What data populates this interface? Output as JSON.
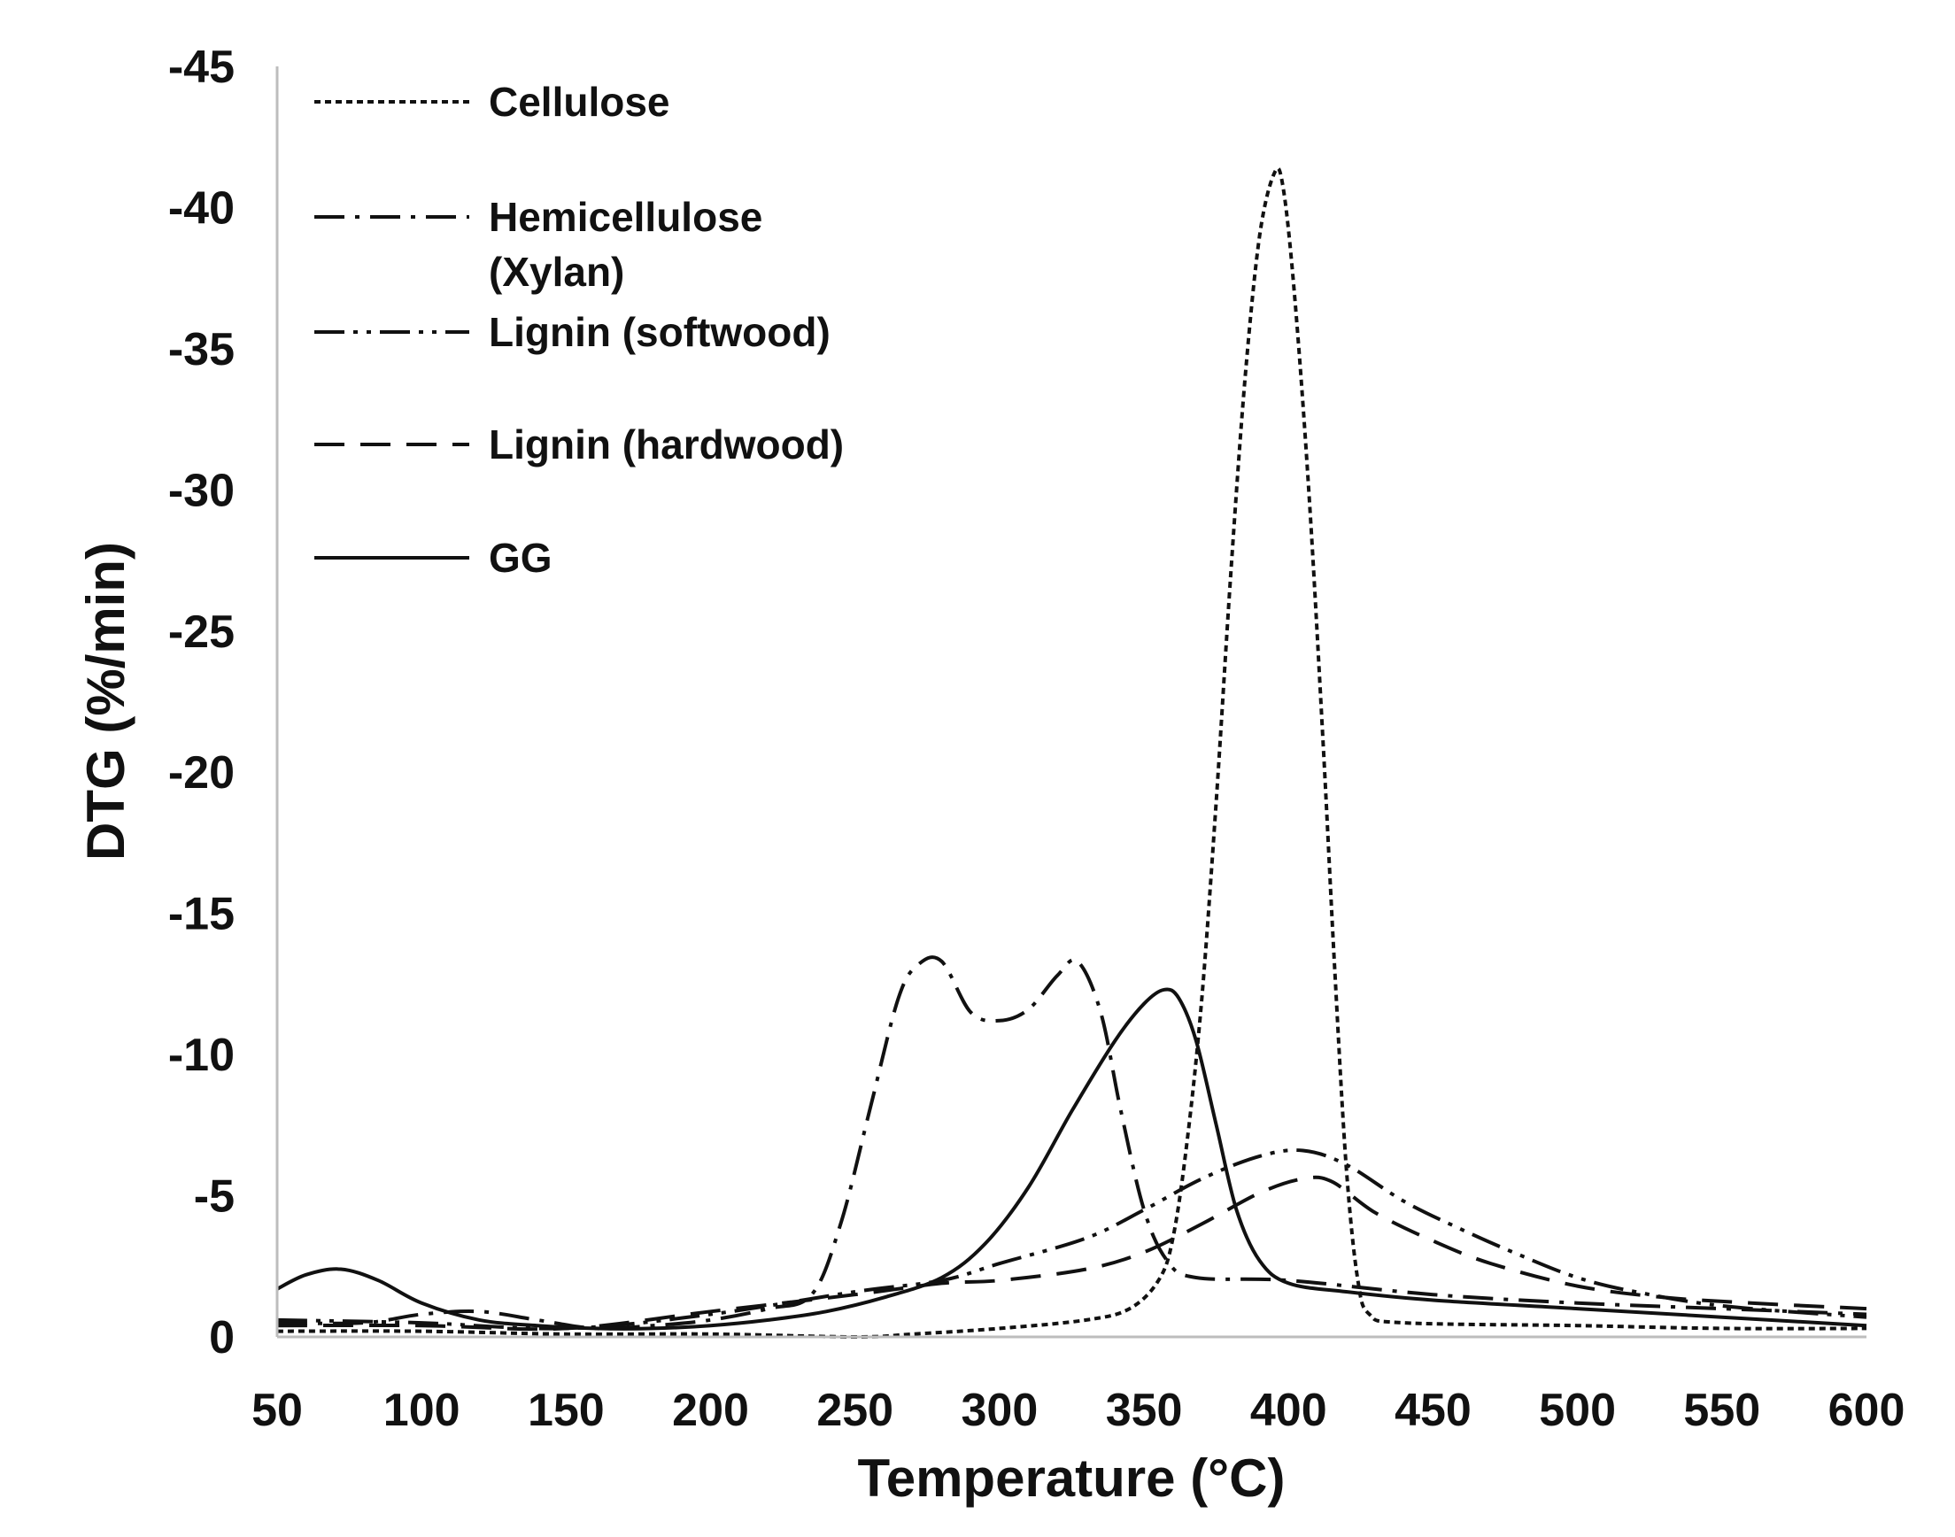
{
  "chart_data": {
    "type": "line",
    "title": "",
    "xlabel": "Temperature (°C)",
    "ylabel": "DTG (%/min)",
    "xlim": [
      50,
      600
    ],
    "ylim": [
      0,
      -45
    ],
    "x_ticks": [
      50,
      100,
      150,
      200,
      250,
      300,
      350,
      400,
      450,
      500,
      550,
      600
    ],
    "y_ticks": [
      0,
      -5,
      -10,
      -15,
      -20,
      -25,
      -30,
      -35,
      -40,
      -45
    ],
    "x_tick_labels": [
      "50",
      "100",
      "150",
      "200",
      "250",
      "300",
      "350",
      "400",
      "450",
      "500",
      "550",
      "600"
    ],
    "y_tick_labels": [
      "0",
      "-5",
      "-10",
      "-15",
      "-20",
      "-25",
      "-30",
      "-35",
      "-40",
      "-45"
    ],
    "grid": false,
    "legend_position": "top-left",
    "series": [
      {
        "name": "Cellulose",
        "legend_lines": [
          "Cellulose"
        ],
        "style": "short-dash",
        "points": [
          [
            50,
            -0.2
          ],
          [
            100,
            -0.2
          ],
          [
            150,
            -0.1
          ],
          [
            200,
            -0.1
          ],
          [
            250,
            0
          ],
          [
            270,
            -0.1
          ],
          [
            300,
            -0.3
          ],
          [
            330,
            -0.6
          ],
          [
            345,
            -1.0
          ],
          [
            355,
            -2.0
          ],
          [
            360,
            -3.5
          ],
          [
            365,
            -7
          ],
          [
            370,
            -12
          ],
          [
            375,
            -19
          ],
          [
            380,
            -27
          ],
          [
            385,
            -34
          ],
          [
            390,
            -39
          ],
          [
            395,
            -41.2
          ],
          [
            398,
            -40.8
          ],
          [
            402,
            -37
          ],
          [
            407,
            -30
          ],
          [
            412,
            -21
          ],
          [
            416,
            -13
          ],
          [
            420,
            -6
          ],
          [
            424,
            -2
          ],
          [
            428,
            -0.8
          ],
          [
            440,
            -0.5
          ],
          [
            500,
            -0.4
          ],
          [
            550,
            -0.3
          ],
          [
            600,
            -0.3
          ]
        ]
      },
      {
        "name": "Hemicellulose (Xylan)",
        "legend_lines": [
          "Hemicellulose",
          "(Xylan)"
        ],
        "style": "dash-dot",
        "points": [
          [
            50,
            -0.5
          ],
          [
            80,
            -0.5
          ],
          [
            100,
            -0.8
          ],
          [
            120,
            -0.9
          ],
          [
            140,
            -0.6
          ],
          [
            160,
            -0.3
          ],
          [
            180,
            -0.4
          ],
          [
            200,
            -0.6
          ],
          [
            220,
            -1.0
          ],
          [
            235,
            -1.5
          ],
          [
            245,
            -4
          ],
          [
            255,
            -8
          ],
          [
            265,
            -12
          ],
          [
            272,
            -13.2
          ],
          [
            280,
            -13.3
          ],
          [
            290,
            -11.5
          ],
          [
            300,
            -11.2
          ],
          [
            310,
            -11.6
          ],
          [
            320,
            -12.8
          ],
          [
            327,
            -13.3
          ],
          [
            335,
            -11.5
          ],
          [
            342,
            -8
          ],
          [
            350,
            -4.5
          ],
          [
            358,
            -2.7
          ],
          [
            368,
            -2.1
          ],
          [
            400,
            -2.0
          ],
          [
            450,
            -1.5
          ],
          [
            500,
            -1.2
          ],
          [
            550,
            -1.0
          ],
          [
            600,
            -0.8
          ]
        ]
      },
      {
        "name": "Lignin (softwood)",
        "legend_lines": [
          "Lignin (softwood)"
        ],
        "style": "dash-dot-dot",
        "points": [
          [
            50,
            -0.6
          ],
          [
            100,
            -0.5
          ],
          [
            150,
            -0.3
          ],
          [
            200,
            -0.8
          ],
          [
            250,
            -1.6
          ],
          [
            280,
            -2.0
          ],
          [
            300,
            -2.6
          ],
          [
            330,
            -3.5
          ],
          [
            350,
            -4.5
          ],
          [
            370,
            -5.6
          ],
          [
            390,
            -6.4
          ],
          [
            405,
            -6.6
          ],
          [
            420,
            -6.1
          ],
          [
            440,
            -4.8
          ],
          [
            460,
            -3.8
          ],
          [
            480,
            -2.9
          ],
          [
            500,
            -2.1
          ],
          [
            520,
            -1.6
          ],
          [
            550,
            -1.1
          ],
          [
            600,
            -0.7
          ]
        ]
      },
      {
        "name": "Lignin (hardwood)",
        "legend_lines": [
          "Lignin (hardwood)"
        ],
        "style": "long-dash",
        "points": [
          [
            50,
            -0.4
          ],
          [
            100,
            -0.4
          ],
          [
            150,
            -0.3
          ],
          [
            200,
            -0.9
          ],
          [
            250,
            -1.5
          ],
          [
            280,
            -1.9
          ],
          [
            300,
            -2.0
          ],
          [
            330,
            -2.4
          ],
          [
            350,
            -3.0
          ],
          [
            370,
            -4.0
          ],
          [
            390,
            -5.1
          ],
          [
            405,
            -5.6
          ],
          [
            415,
            -5.5
          ],
          [
            430,
            -4.4
          ],
          [
            450,
            -3.4
          ],
          [
            470,
            -2.6
          ],
          [
            500,
            -1.8
          ],
          [
            530,
            -1.4
          ],
          [
            560,
            -1.2
          ],
          [
            600,
            -1.0
          ]
        ]
      },
      {
        "name": "GG",
        "legend_lines": [
          "GG"
        ],
        "style": "solid",
        "points": [
          [
            50,
            -1.7
          ],
          [
            60,
            -2.2
          ],
          [
            72,
            -2.4
          ],
          [
            85,
            -2.0
          ],
          [
            100,
            -1.2
          ],
          [
            120,
            -0.6
          ],
          [
            140,
            -0.4
          ],
          [
            160,
            -0.3
          ],
          [
            180,
            -0.3
          ],
          [
            200,
            -0.4
          ],
          [
            220,
            -0.6
          ],
          [
            240,
            -0.9
          ],
          [
            260,
            -1.4
          ],
          [
            280,
            -2.1
          ],
          [
            295,
            -3.3
          ],
          [
            310,
            -5.3
          ],
          [
            325,
            -8.0
          ],
          [
            340,
            -10.5
          ],
          [
            350,
            -11.8
          ],
          [
            357,
            -12.3
          ],
          [
            362,
            -12.0
          ],
          [
            368,
            -10.5
          ],
          [
            375,
            -7.5
          ],
          [
            382,
            -4.5
          ],
          [
            390,
            -2.7
          ],
          [
            400,
            -1.9
          ],
          [
            420,
            -1.6
          ],
          [
            450,
            -1.3
          ],
          [
            500,
            -1.0
          ],
          [
            550,
            -0.7
          ],
          [
            600,
            -0.4
          ]
        ]
      }
    ]
  }
}
